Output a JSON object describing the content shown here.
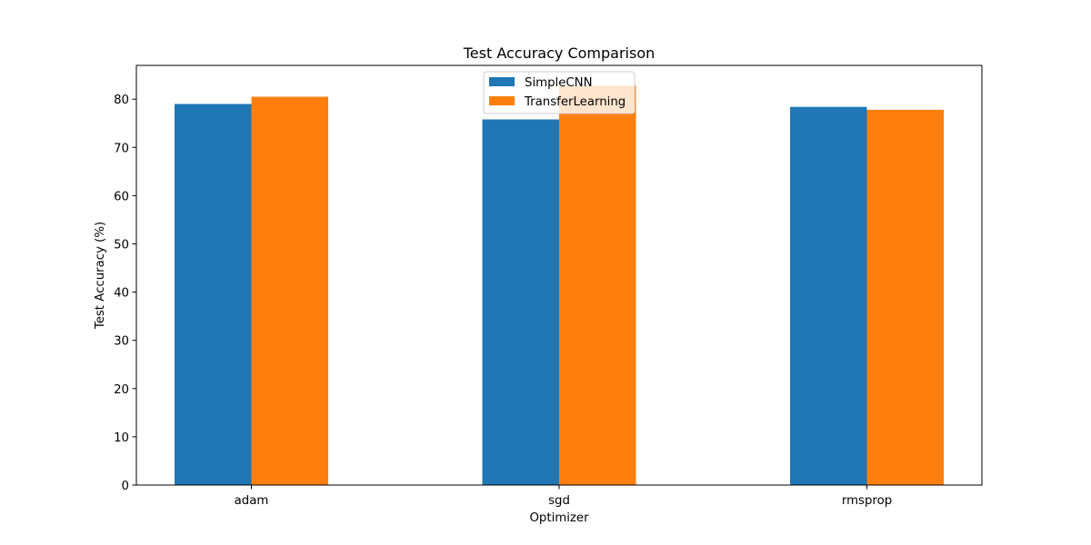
{
  "chart_data": {
    "type": "bar",
    "title": "Test Accuracy Comparison",
    "xlabel": "Optimizer",
    "ylabel": "Test Accuracy (%)",
    "categories": [
      "adam",
      "sgd",
      "rmsprop"
    ],
    "series": [
      {
        "name": "SimpleCNN",
        "color": "#1f77b4",
        "values": [
          79.0,
          75.8,
          78.4
        ]
      },
      {
        "name": "TransferLearning",
        "color": "#ff7f0e",
        "values": [
          80.5,
          82.8,
          77.8
        ]
      }
    ],
    "ylim": [
      0,
      87
    ],
    "yticks": [
      0,
      10,
      20,
      30,
      40,
      50,
      60,
      70,
      80
    ],
    "grid": false,
    "legend_position": "upper center"
  }
}
